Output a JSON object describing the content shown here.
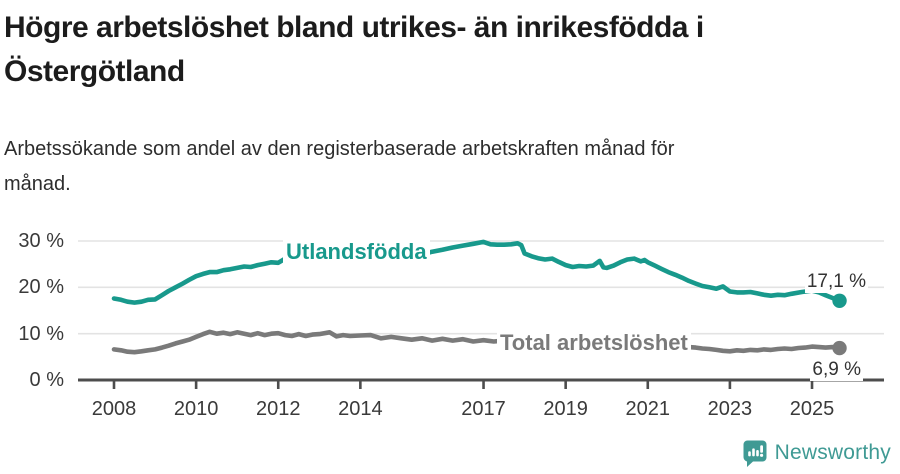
{
  "header": {
    "title_lines": [
      "Högre arbetslöshet bland utrikes- än inrikesfödda i",
      "Östergötland"
    ],
    "subtitle_lines": [
      "Arbetssökande som andel av den registerbaserade arbetskraften månad för",
      "månad."
    ]
  },
  "branding": {
    "name": "Newsworthy",
    "badge_color": "#3F9A94"
  },
  "colors": {
    "series_utlandsfodda": "#18998C",
    "series_total": "#7a7a7a",
    "grid": "#e3e3e3",
    "axis": "#4d4d4d",
    "tick_text": "#3a3a3a"
  },
  "chart_data": {
    "type": "line",
    "title": "Högre arbetslöshet bland utrikes- än inrikesfödda i Östergötland",
    "subtitle": "Arbetssökande som andel av den registerbaserade arbetskraften månad för månad.",
    "xlabel": "",
    "ylabel": "",
    "y_unit": "%",
    "ylim": [
      0,
      31
    ],
    "x_start": 2008,
    "x_end": 2025.67,
    "grid": "horizontal",
    "legend_position": "inline-annotations",
    "y_axis": {
      "ticks": [
        {
          "value": 0,
          "label": "0 %"
        },
        {
          "value": 10,
          "label": "10 %"
        },
        {
          "value": 20,
          "label": "20 %"
        },
        {
          "value": 30,
          "label": "30 %"
        }
      ]
    },
    "x_axis": {
      "ticks": [
        {
          "year": 2008,
          "label": "2008"
        },
        {
          "year": 2010,
          "label": "2010"
        },
        {
          "year": 2012,
          "label": "2012"
        },
        {
          "year": 2014,
          "label": "2014"
        },
        {
          "year": 2017,
          "label": "2017"
        },
        {
          "year": 2019,
          "label": "2019"
        },
        {
          "year": 2021,
          "label": "2021"
        },
        {
          "year": 2023,
          "label": "2023"
        },
        {
          "year": 2025,
          "label": "2025"
        }
      ]
    },
    "series": [
      {
        "name": "Utlandsfödda",
        "color": "#18998C",
        "end_label": "17,1 %",
        "end_value": 17.1,
        "points": [
          [
            2008.0,
            17.6
          ],
          [
            2008.17,
            17.3
          ],
          [
            2008.33,
            16.9
          ],
          [
            2008.5,
            16.7
          ],
          [
            2008.67,
            16.9
          ],
          [
            2008.83,
            17.3
          ],
          [
            2009.0,
            17.4
          ],
          [
            2009.17,
            18.3
          ],
          [
            2009.33,
            19.2
          ],
          [
            2009.5,
            20.0
          ],
          [
            2009.67,
            20.8
          ],
          [
            2009.83,
            21.6
          ],
          [
            2010.0,
            22.4
          ],
          [
            2010.17,
            22.9
          ],
          [
            2010.33,
            23.3
          ],
          [
            2010.5,
            23.3
          ],
          [
            2010.67,
            23.7
          ],
          [
            2010.83,
            23.9
          ],
          [
            2011.0,
            24.2
          ],
          [
            2011.17,
            24.5
          ],
          [
            2011.33,
            24.4
          ],
          [
            2011.5,
            24.8
          ],
          [
            2011.67,
            25.1
          ],
          [
            2011.83,
            25.4
          ],
          [
            2012.0,
            25.3
          ],
          [
            2012.17,
            26.2
          ],
          [
            2012.33,
            25.6
          ],
          [
            2012.5,
            25.8
          ],
          [
            2012.67,
            26.0
          ],
          [
            2012.83,
            26.3
          ],
          [
            2013.0,
            26.2
          ],
          [
            2013.25,
            26.6
          ],
          [
            2013.5,
            26.4
          ],
          [
            2013.75,
            26.7
          ],
          [
            2014.0,
            26.8
          ],
          [
            2014.25,
            26.9
          ],
          [
            2014.5,
            27.1
          ],
          [
            2014.75,
            27.0
          ],
          [
            2015.0,
            27.3
          ],
          [
            2015.25,
            27.6
          ],
          [
            2015.5,
            27.1
          ],
          [
            2015.75,
            27.7
          ],
          [
            2016.0,
            28.1
          ],
          [
            2016.25,
            28.6
          ],
          [
            2016.5,
            29.0
          ],
          [
            2016.75,
            29.4
          ],
          [
            2017.0,
            29.8
          ],
          [
            2017.17,
            29.3
          ],
          [
            2017.33,
            29.2
          ],
          [
            2017.5,
            29.2
          ],
          [
            2017.67,
            29.3
          ],
          [
            2017.83,
            29.5
          ],
          [
            2017.92,
            29.1
          ],
          [
            2018.0,
            27.3
          ],
          [
            2018.17,
            26.7
          ],
          [
            2018.33,
            26.3
          ],
          [
            2018.5,
            26.0
          ],
          [
            2018.67,
            26.2
          ],
          [
            2018.83,
            25.5
          ],
          [
            2019.0,
            24.8
          ],
          [
            2019.17,
            24.4
          ],
          [
            2019.33,
            24.6
          ],
          [
            2019.5,
            24.5
          ],
          [
            2019.67,
            24.7
          ],
          [
            2019.83,
            25.7
          ],
          [
            2019.92,
            24.3
          ],
          [
            2020.0,
            24.2
          ],
          [
            2020.17,
            24.7
          ],
          [
            2020.33,
            25.4
          ],
          [
            2020.5,
            26.0
          ],
          [
            2020.67,
            26.2
          ],
          [
            2020.83,
            25.6
          ],
          [
            2020.92,
            25.9
          ],
          [
            2021.0,
            25.4
          ],
          [
            2021.17,
            24.7
          ],
          [
            2021.33,
            24.0
          ],
          [
            2021.5,
            23.3
          ],
          [
            2021.67,
            22.7
          ],
          [
            2021.83,
            22.1
          ],
          [
            2022.0,
            21.4
          ],
          [
            2022.17,
            20.8
          ],
          [
            2022.33,
            20.3
          ],
          [
            2022.5,
            20.0
          ],
          [
            2022.67,
            19.7
          ],
          [
            2022.83,
            20.2
          ],
          [
            2023.0,
            19.1
          ],
          [
            2023.17,
            18.9
          ],
          [
            2023.33,
            18.9
          ],
          [
            2023.5,
            19.0
          ],
          [
            2023.67,
            18.7
          ],
          [
            2023.83,
            18.4
          ],
          [
            2024.0,
            18.2
          ],
          [
            2024.17,
            18.4
          ],
          [
            2024.33,
            18.3
          ],
          [
            2024.5,
            18.6
          ],
          [
            2024.75,
            19.0
          ],
          [
            2025.0,
            19.3
          ],
          [
            2025.17,
            18.9
          ],
          [
            2025.33,
            18.3
          ],
          [
            2025.5,
            17.7
          ],
          [
            2025.67,
            17.1
          ]
        ]
      },
      {
        "name": "Total arbetslöshet",
        "color": "#7a7a7a",
        "end_label": "6,9 %",
        "end_value": 6.9,
        "points": [
          [
            2008.0,
            6.6
          ],
          [
            2008.17,
            6.4
          ],
          [
            2008.33,
            6.1
          ],
          [
            2008.5,
            6.0
          ],
          [
            2008.67,
            6.2
          ],
          [
            2008.83,
            6.4
          ],
          [
            2009.0,
            6.6
          ],
          [
            2009.17,
            7.0
          ],
          [
            2009.33,
            7.4
          ],
          [
            2009.5,
            7.9
          ],
          [
            2009.67,
            8.3
          ],
          [
            2009.83,
            8.7
          ],
          [
            2010.0,
            9.3
          ],
          [
            2010.17,
            9.9
          ],
          [
            2010.33,
            10.4
          ],
          [
            2010.5,
            10.0
          ],
          [
            2010.67,
            10.2
          ],
          [
            2010.83,
            9.9
          ],
          [
            2011.0,
            10.3
          ],
          [
            2011.17,
            10.0
          ],
          [
            2011.33,
            9.7
          ],
          [
            2011.5,
            10.1
          ],
          [
            2011.67,
            9.7
          ],
          [
            2011.83,
            10.0
          ],
          [
            2012.0,
            10.1
          ],
          [
            2012.17,
            9.7
          ],
          [
            2012.33,
            9.5
          ],
          [
            2012.5,
            9.9
          ],
          [
            2012.67,
            9.5
          ],
          [
            2012.83,
            9.8
          ],
          [
            2013.0,
            9.9
          ],
          [
            2013.25,
            10.3
          ],
          [
            2013.42,
            9.4
          ],
          [
            2013.58,
            9.7
          ],
          [
            2013.75,
            9.5
          ],
          [
            2014.0,
            9.6
          ],
          [
            2014.25,
            9.7
          ],
          [
            2014.5,
            9.0
          ],
          [
            2014.75,
            9.3
          ],
          [
            2015.0,
            9.0
          ],
          [
            2015.25,
            8.7
          ],
          [
            2015.5,
            9.0
          ],
          [
            2015.75,
            8.5
          ],
          [
            2016.0,
            8.9
          ],
          [
            2016.25,
            8.5
          ],
          [
            2016.5,
            8.8
          ],
          [
            2016.75,
            8.3
          ],
          [
            2017.0,
            8.6
          ],
          [
            2017.25,
            8.3
          ],
          [
            2017.5,
            8.5
          ],
          [
            2017.75,
            8.1
          ],
          [
            2018.0,
            8.0
          ],
          [
            2018.25,
            7.9
          ],
          [
            2018.5,
            7.8
          ],
          [
            2018.75,
            7.7
          ],
          [
            2019.0,
            7.6
          ],
          [
            2019.25,
            7.6
          ],
          [
            2019.5,
            7.7
          ],
          [
            2019.75,
            7.8
          ],
          [
            2020.0,
            8.0
          ],
          [
            2020.25,
            8.6
          ],
          [
            2020.5,
            8.9
          ],
          [
            2020.75,
            8.7
          ],
          [
            2021.0,
            8.4
          ],
          [
            2021.25,
            8.0
          ],
          [
            2021.5,
            7.6
          ],
          [
            2021.75,
            7.3
          ],
          [
            2022.0,
            7.1
          ],
          [
            2022.17,
            7.0
          ],
          [
            2022.33,
            6.8
          ],
          [
            2022.5,
            6.7
          ],
          [
            2022.67,
            6.5
          ],
          [
            2022.83,
            6.3
          ],
          [
            2023.0,
            6.2
          ],
          [
            2023.17,
            6.4
          ],
          [
            2023.33,
            6.3
          ],
          [
            2023.5,
            6.5
          ],
          [
            2023.67,
            6.4
          ],
          [
            2023.83,
            6.6
          ],
          [
            2024.0,
            6.5
          ],
          [
            2024.17,
            6.7
          ],
          [
            2024.33,
            6.8
          ],
          [
            2024.5,
            6.7
          ],
          [
            2024.67,
            6.9
          ],
          [
            2024.83,
            7.0
          ],
          [
            2025.0,
            7.2
          ],
          [
            2025.17,
            7.1
          ],
          [
            2025.33,
            7.0
          ],
          [
            2025.5,
            7.1
          ],
          [
            2025.67,
            6.9
          ]
        ]
      }
    ]
  }
}
